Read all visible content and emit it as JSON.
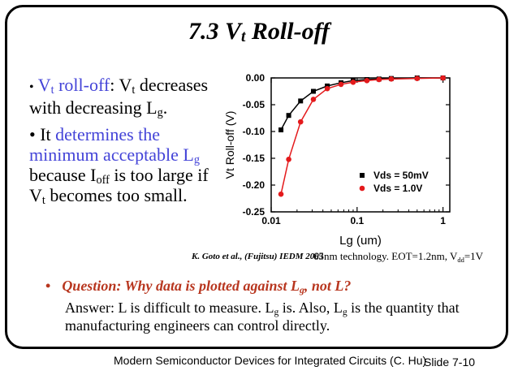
{
  "slide": {
    "title": "7.3 V",
    "title_sub": "t",
    "title_rest": " Roll-off",
    "bullet1": {
      "marker": "•",
      "vt_v": "V",
      "vt_sub": "t",
      "vt_rest": " roll-off",
      "text_a": ":  V",
      "text_a_sub": "t",
      "text_b": " decreases with decreasing L",
      "text_b_sub": "g",
      "text_c": "."
    },
    "bullet2": {
      "marker": "•",
      "it": " It ",
      "blue": "determines the minimum acceptable L",
      "blue_sub": "g",
      "text_a": " because I",
      "text_a_sub": "off",
      "text_b": " is too large if V",
      "text_b_sub": "t",
      "text_c": " becomes too small."
    },
    "citation": "K. Goto et al., (Fujitsu) IEDM 2003",
    "tech": {
      "text": "65nm technology. EOT=1.2nm, V",
      "sub": "dd",
      "tail": "=1V"
    },
    "question": {
      "marker": "•",
      "text": "Question: Why data is plotted against L",
      "sub": "g",
      "tail": ", not L?"
    },
    "answer": {
      "a": "Answer: L is difficult to measure. L",
      "a_sub": "g",
      "b": " is. Also, L",
      "b_sub": "g",
      "c": " is the quantity that manufacturing engineers can control directly."
    },
    "footer": "Modern Semiconductor Devices for Integrated Circuits (C. Hu)",
    "slide_number": "Slide 7-10"
  },
  "chart_data": {
    "type": "scatter",
    "xlabel": "Lg (um)",
    "ylabel": "Vt Roll-off (V)",
    "xscale": "log",
    "xlim": [
      0.01,
      1.2
    ],
    "ylim": [
      -0.25,
      0.0
    ],
    "x_ticks": [
      0.01,
      0.1,
      1
    ],
    "x_tick_labels": [
      "0.01",
      "0.1",
      "1"
    ],
    "y_ticks": [
      0.0,
      -0.05,
      -0.1,
      -0.15,
      -0.2,
      -0.25
    ],
    "y_tick_labels": [
      "0.00",
      "-0.05",
      "-0.10",
      "-0.15",
      "-0.20",
      "-0.25"
    ],
    "legend_position": "bottom-right",
    "series": [
      {
        "name": "Vds = 50mV",
        "color": "#000000",
        "marker": "square",
        "x": [
          0.013,
          0.016,
          0.022,
          0.031,
          0.045,
          0.065,
          0.09,
          0.13,
          0.18,
          0.25,
          0.5,
          1.0
        ],
        "y": [
          -0.097,
          -0.07,
          -0.043,
          -0.025,
          -0.015,
          -0.009,
          -0.005,
          -0.003,
          -0.002,
          -0.001,
          0.0,
          0.0
        ]
      },
      {
        "name": "Vds = 1.0V",
        "color": "#e41a1c",
        "marker": "circle",
        "x": [
          0.013,
          0.016,
          0.022,
          0.031,
          0.045,
          0.065,
          0.09,
          0.13,
          0.18,
          0.25,
          0.5,
          1.0
        ],
        "y": [
          -0.217,
          -0.152,
          -0.082,
          -0.04,
          -0.02,
          -0.012,
          -0.008,
          -0.005,
          -0.003,
          -0.002,
          -0.001,
          0.0
        ]
      }
    ]
  }
}
